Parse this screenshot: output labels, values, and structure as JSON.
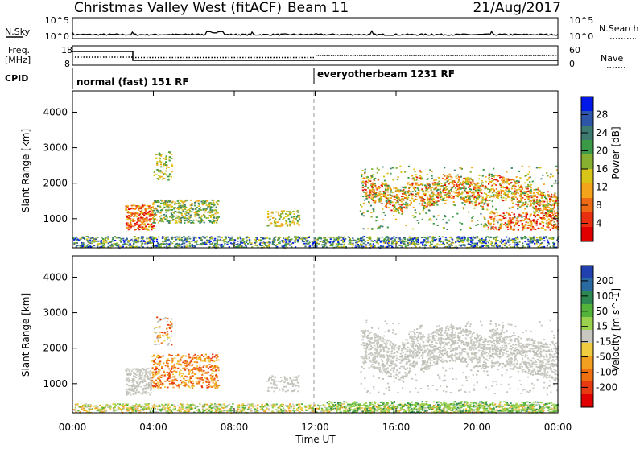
{
  "header": {
    "title": "Christmas Valley West (fitACF)",
    "beam": "Beam 11",
    "date": "21/Aug/2017"
  },
  "top_panels": {
    "nsky_label": "N.Sky",
    "nsky_ticks": [
      "10^5",
      "10^0"
    ],
    "nsearch_label": "N.Search",
    "nsearch_ticks": [
      "10^5",
      "10^0"
    ],
    "freq_label": "Freq.",
    "freq_unit": "[MHz]",
    "freq_ticks": [
      "18",
      "8"
    ],
    "nave_label": "Nave",
    "nave_ticks": [
      "60",
      "0"
    ],
    "cpid_label": "CPID",
    "cpid_segments": [
      "normal (fast) 151 RF",
      "everyotherbeam 1231 RF"
    ]
  },
  "chart_data": [
    {
      "type": "heatmap",
      "name": "power-panel",
      "ylabel": "Slant Range [km]",
      "yticks": [
        1000,
        2000,
        3000,
        4000
      ],
      "ylim": [
        180,
        4600
      ],
      "xlim": [
        0,
        24
      ],
      "xlabel": "Time UT",
      "xticks": [
        "00:00",
        "04:00",
        "08:00",
        "12:00",
        "16:00",
        "20:00",
        "00:00"
      ],
      "colorbar": {
        "label": "Power [dB]",
        "ticks": [
          "4",
          "8",
          "12",
          "16",
          "20",
          "24",
          "28"
        ],
        "colors": [
          "#0018e8",
          "#2d56a8",
          "#3d7a70",
          "#3c9a46",
          "#88b030",
          "#d9c418",
          "#f3a41a",
          "#ee6a14",
          "#e83010",
          "#e00000"
        ]
      }
    },
    {
      "type": "heatmap",
      "name": "velocity-panel",
      "ylabel": "Slant Range [km]",
      "yticks": [
        1000,
        2000,
        3000,
        4000
      ],
      "ylim": [
        180,
        4600
      ],
      "xlim": [
        0,
        24
      ],
      "xlabel": "Time UT",
      "xticks": [
        "00:00",
        "04:00",
        "08:00",
        "12:00",
        "16:00",
        "20:00",
        "00:00"
      ],
      "colorbar": {
        "label": "Velocity [m s^-1]",
        "ticks": [
          "200",
          "100",
          "50",
          "15",
          "-15",
          "-50",
          "-100",
          "-200"
        ],
        "colors": [
          "#2040b0",
          "#2a6aa0",
          "#2c8850",
          "#52b23a",
          "#9ad24e",
          "#c8c8c0",
          "#f0cc40",
          "#f2a020",
          "#ee7010",
          "#e83a10",
          "#e00000"
        ]
      }
    }
  ]
}
